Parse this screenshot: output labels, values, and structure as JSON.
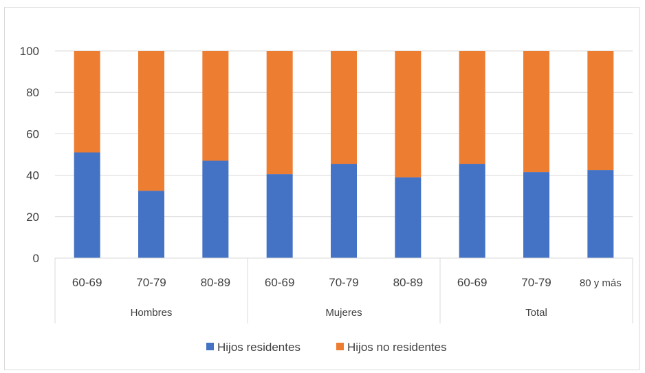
{
  "chart_data": {
    "type": "bar",
    "stacked": true,
    "categories": [
      "60-69",
      "70-79",
      "80-89",
      "60-69",
      "70-79",
      "80-89",
      "60-69",
      "70-79",
      "80 y más"
    ],
    "groups": [
      {
        "label": "Hombres",
        "count": 3
      },
      {
        "label": "Mujeres",
        "count": 3
      },
      {
        "label": "Total",
        "count": 3
      }
    ],
    "series": [
      {
        "name": "Hijos residentes",
        "color": "#4472c4",
        "values": [
          51,
          32.5,
          47,
          40.5,
          45.5,
          39,
          45.5,
          41.5,
          42.5
        ]
      },
      {
        "name": "Hijos no residentes",
        "color": "#ed7d31",
        "values": [
          49,
          67.5,
          53,
          59.5,
          54.5,
          61,
          54.5,
          58.5,
          57.5
        ]
      }
    ],
    "yticks": [
      "0",
      "20",
      "40",
      "60",
      "80",
      "100"
    ],
    "ylim": [
      0,
      100
    ],
    "grid": true,
    "legend_position": "bottom"
  }
}
